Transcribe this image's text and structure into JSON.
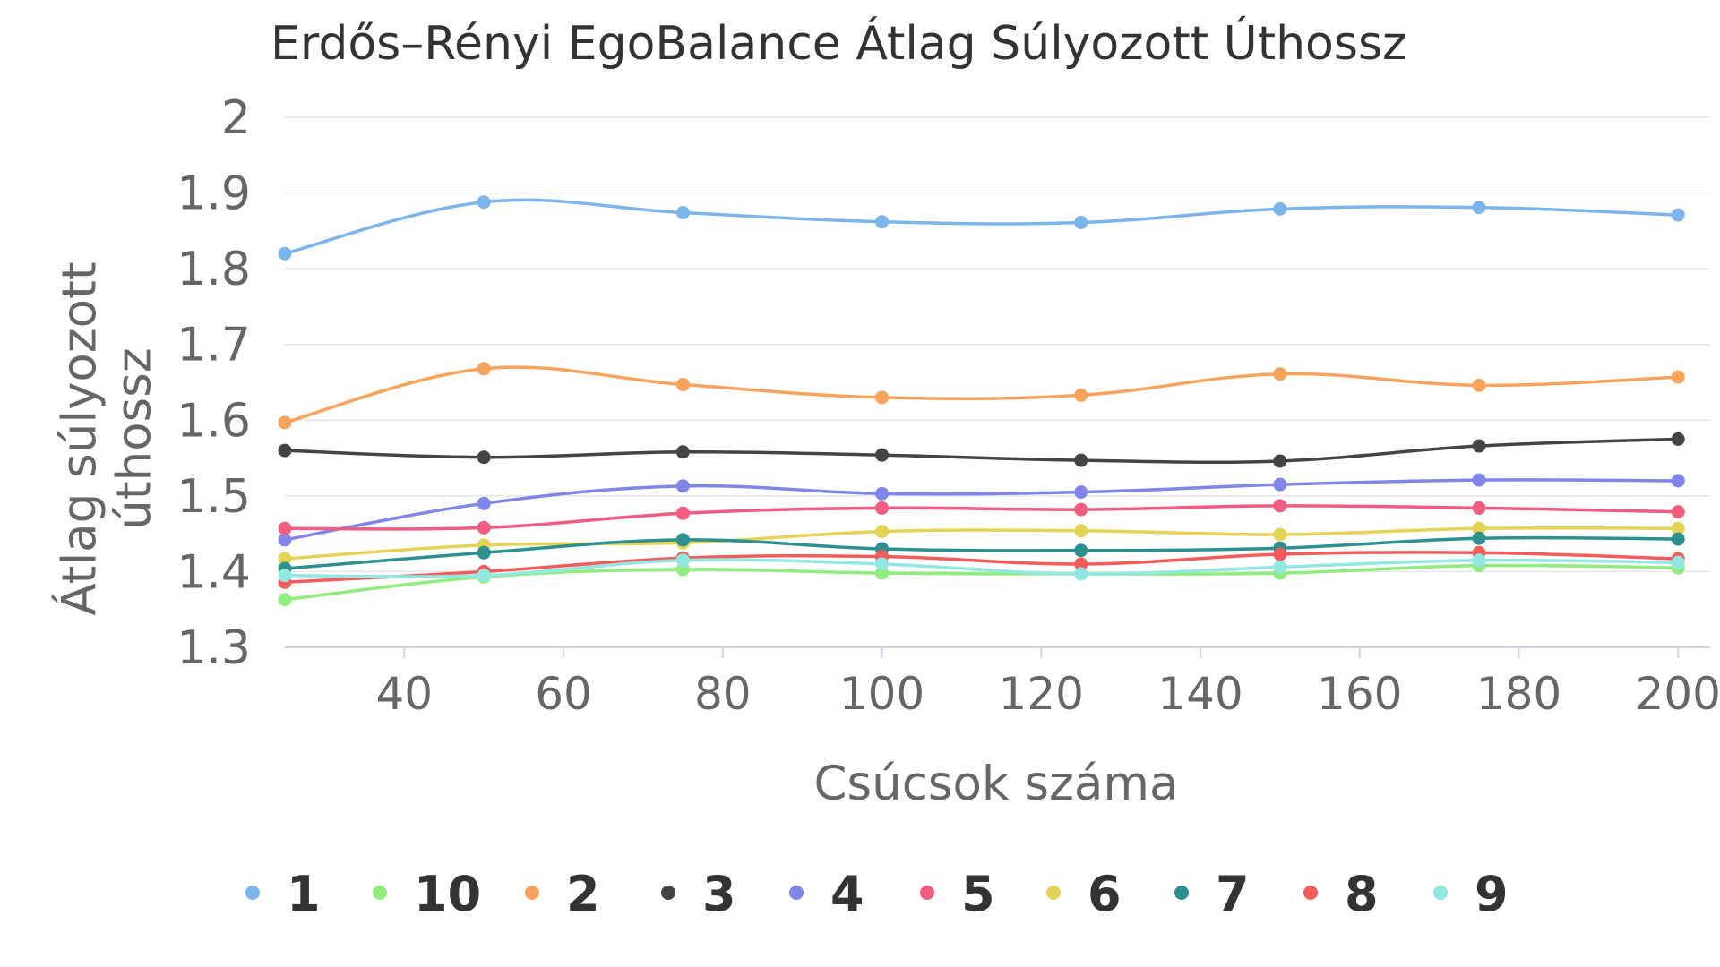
{
  "chart_data": {
    "type": "line",
    "title": "Erdős–Rényi EgoBalance Átlag Súlyozott Úthossz",
    "xlabel": "Csúcsok száma",
    "ylabel": "Átlag súlyozott úthossz",
    "x": [
      25,
      50,
      75,
      100,
      125,
      150,
      175,
      200
    ],
    "xlim": [
      25,
      202
    ],
    "ylim": [
      1.3,
      2.0
    ],
    "x_ticks": [
      40,
      60,
      80,
      100,
      120,
      140,
      160,
      180,
      200
    ],
    "y_ticks": [
      1.3,
      1.4,
      1.5,
      1.6,
      1.7,
      1.8,
      1.9,
      2
    ],
    "grid": "horizontal",
    "legend_position": "bottom",
    "series": [
      {
        "name": "1",
        "color": "#7cb5ec",
        "values": [
          1.82,
          1.888,
          1.874,
          1.862,
          1.861,
          1.879,
          1.881,
          1.871
        ]
      },
      {
        "name": "10",
        "color": "#90ed7d",
        "values": [
          1.363,
          1.393,
          1.403,
          1.398,
          1.397,
          1.398,
          1.408,
          1.405
        ]
      },
      {
        "name": "2",
        "color": "#f7a35c",
        "values": [
          1.597,
          1.668,
          1.647,
          1.63,
          1.633,
          1.661,
          1.646,
          1.657
        ]
      },
      {
        "name": "3",
        "color": "#434348",
        "values": [
          1.56,
          1.551,
          1.558,
          1.554,
          1.547,
          1.546,
          1.566,
          1.575
        ]
      },
      {
        "name": "4",
        "color": "#8085e9",
        "values": [
          1.442,
          1.49,
          1.513,
          1.503,
          1.505,
          1.515,
          1.521,
          1.52
        ]
      },
      {
        "name": "5",
        "color": "#f15c80",
        "values": [
          1.457,
          1.458,
          1.477,
          1.484,
          1.482,
          1.487,
          1.484,
          1.479
        ]
      },
      {
        "name": "6",
        "color": "#e4d354",
        "values": [
          1.417,
          1.435,
          1.438,
          1.453,
          1.454,
          1.449,
          1.457,
          1.457
        ]
      },
      {
        "name": "7",
        "color": "#2b908f",
        "values": [
          1.404,
          1.425,
          1.442,
          1.43,
          1.428,
          1.431,
          1.444,
          1.443
        ]
      },
      {
        "name": "8",
        "color": "#f45b5b",
        "values": [
          1.386,
          1.4,
          1.418,
          1.42,
          1.41,
          1.423,
          1.425,
          1.417
        ]
      },
      {
        "name": "9",
        "color": "#91e8e1",
        "values": [
          1.395,
          1.395,
          1.415,
          1.41,
          1.397,
          1.406,
          1.415,
          1.412
        ]
      }
    ]
  }
}
